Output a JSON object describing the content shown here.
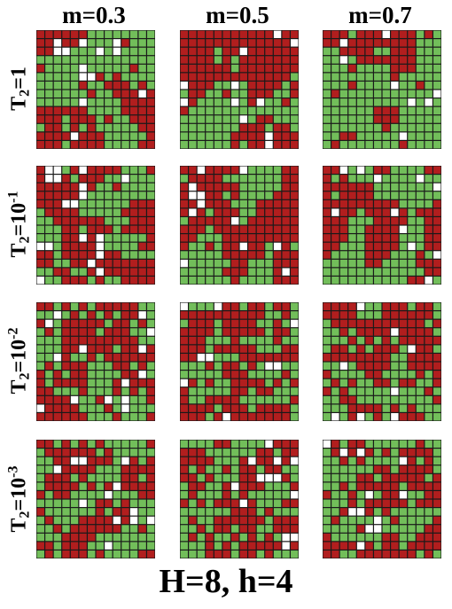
{
  "columns": [
    {
      "label": "m=0.3",
      "m": 0.3
    },
    {
      "label": "m=0.5",
      "m": 0.5
    },
    {
      "label": "m=0.7",
      "m": 0.7
    }
  ],
  "rows": [
    {
      "base": "T",
      "sub": "2",
      "rest": "=1",
      "exp": ""
    },
    {
      "base": "T",
      "sub": "2",
      "rest": "=10",
      "exp": "-1"
    },
    {
      "base": "T",
      "sub": "2",
      "rest": "=10",
      "exp": "-2"
    },
    {
      "base": "T",
      "sub": "2",
      "rest": "=10",
      "exp": "-3"
    }
  ],
  "footer": "H=8, h=4",
  "colors": {
    "state_a": "#b11e1e",
    "state_b": "#72be5a",
    "vacancy": "#ffffff",
    "grid_line": "#1a1a1a"
  },
  "cells_per_side": 14
}
